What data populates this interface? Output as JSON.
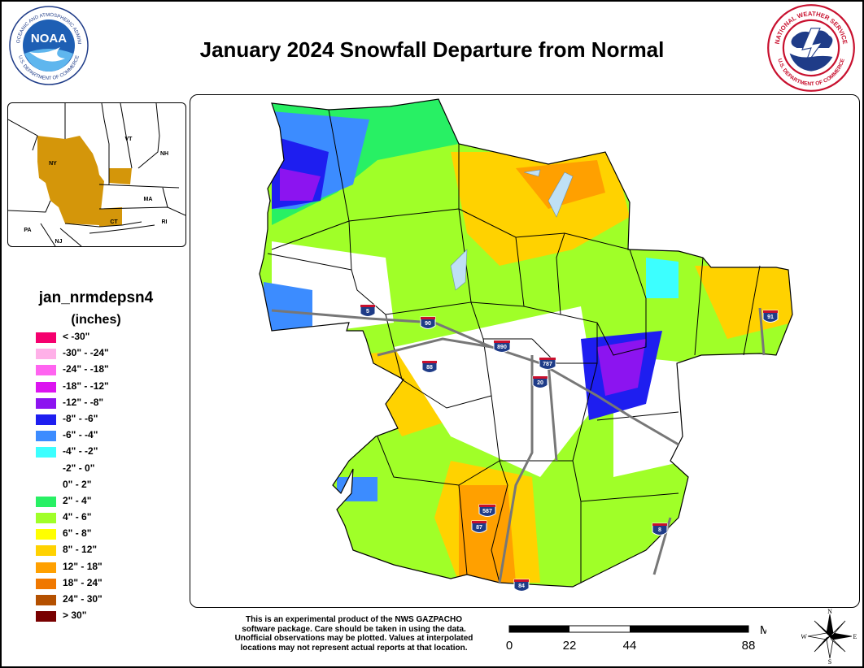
{
  "title": "January 2024 Snowfall Departure from Normal",
  "logos": {
    "noaa": {
      "center_text": "NOAA",
      "ring_text": "NATIONAL OCEANIC AND ATMOSPHERIC ADMINISTRATION",
      "ring_bottom": "U.S. DEPARTMENT OF COMMERCE"
    },
    "nws": {
      "ring_text": "NATIONAL WEATHER SERVICE",
      "ring_bottom": "U.S. DEPARTMENT OF COMMERCE"
    }
  },
  "inset": {
    "states": [
      "VT",
      "NH",
      "NY",
      "MA",
      "CT",
      "RI",
      "PA",
      "NJ"
    ],
    "highlight_color": "#d4960a"
  },
  "legend": {
    "title": "jan_nrmdepsn4",
    "unit": "(inches)",
    "items": [
      {
        "label": "< -30\"",
        "color": "#f5006e"
      },
      {
        "label": "-30\" - -24\"",
        "color": "#ffb0e8"
      },
      {
        "label": "-24\" - -18\"",
        "color": "#ff64f0"
      },
      {
        "label": "-18\" - -12\"",
        "color": "#dc14f0"
      },
      {
        "label": "-12\" - -8\"",
        "color": "#8c14f0"
      },
      {
        "label": "-8\" - -6\"",
        "color": "#1e1ef0"
      },
      {
        "label": "-6\" - -4\"",
        "color": "#3c8cff"
      },
      {
        "label": "-4\" - -2\"",
        "color": "#3cffff"
      },
      {
        "label": "-2\" - 0\"",
        "color": "#ffffff"
      },
      {
        "label": "0\" - 2\"",
        "color": "#ffffff"
      },
      {
        "label": "2\" - 4\"",
        "color": "#28f064"
      },
      {
        "label": "4\" - 6\"",
        "color": "#a0ff28"
      },
      {
        "label": "6\" - 8\"",
        "color": "#ffff00"
      },
      {
        "label": "8\" - 12\"",
        "color": "#ffd200"
      },
      {
        "label": "12\" - 18\"",
        "color": "#ffa000"
      },
      {
        "label": "18\" - 24\"",
        "color": "#f07800"
      },
      {
        "label": "24\" - 30\"",
        "color": "#b45000"
      },
      {
        "label": "> 30\"",
        "color": "#780000"
      }
    ]
  },
  "highways": [
    "5",
    "90",
    "88",
    "890",
    "787",
    "20",
    "91",
    "587",
    "87",
    "84",
    "8"
  ],
  "disclaimer": [
    "This is an experimental product of the NWS GAZPACHO",
    "software package. Care should be taken in using the data.",
    "Unofficial observations may be plotted. Values at interpolated",
    "locations may not represent actual reports at that location."
  ],
  "scale": {
    "unit": "Miles",
    "ticks": [
      "0",
      "22",
      "44",
      "88"
    ]
  },
  "compass": {
    "n": "N",
    "e": "E",
    "s": "S",
    "w": "W"
  }
}
